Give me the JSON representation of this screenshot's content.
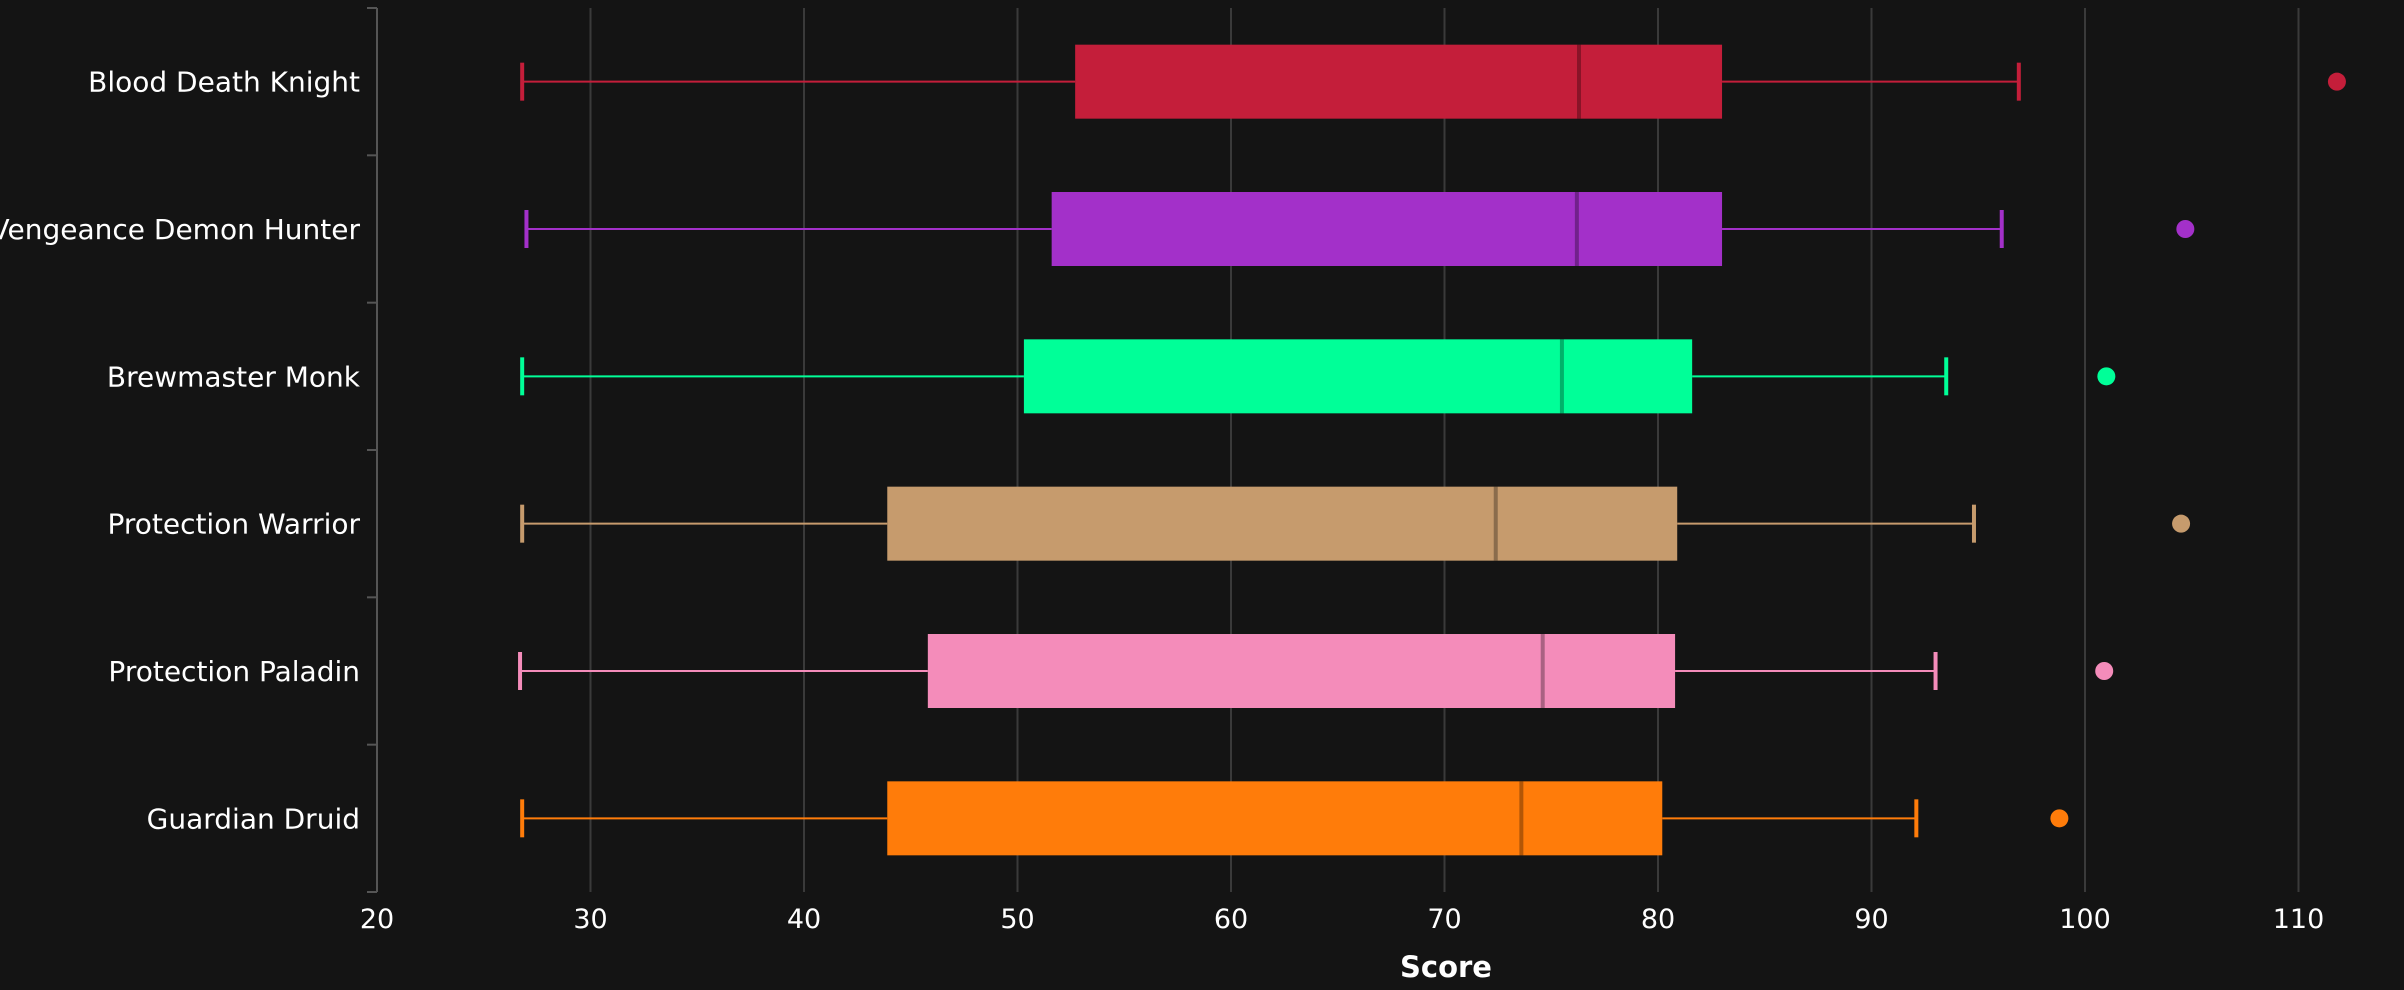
{
  "chart_data": {
    "type": "box",
    "orientation": "horizontal",
    "title": "",
    "xlabel": "Score",
    "ylabel": "",
    "xlim": [
      20,
      113
    ],
    "xticks": [
      20,
      30,
      40,
      50,
      60,
      70,
      80,
      90,
      100,
      110
    ],
    "grid": "vertical",
    "legend": "none",
    "background": "#141414",
    "series": [
      {
        "name": "Blood Death Knight",
        "color": "#C41E3A",
        "min": 26.8,
        "q1": 52.7,
        "median": 76.3,
        "q3": 83.0,
        "max": 96.9,
        "outliers": [
          111.8
        ]
      },
      {
        "name": "Vengeance Demon Hunter",
        "color": "#A330C9",
        "min": 27.0,
        "q1": 51.6,
        "median": 76.2,
        "q3": 83.0,
        "max": 96.1,
        "outliers": [
          104.7
        ]
      },
      {
        "name": "Brewmaster Monk",
        "color": "#00FF98",
        "min": 26.8,
        "q1": 50.3,
        "median": 75.5,
        "q3": 81.6,
        "max": 93.5,
        "outliers": [
          101.0
        ]
      },
      {
        "name": "Protection Warrior",
        "color": "#C69B6D",
        "min": 26.8,
        "q1": 43.9,
        "median": 72.4,
        "q3": 80.9,
        "max": 94.8,
        "outliers": [
          104.5
        ]
      },
      {
        "name": "Protection Paladin",
        "color": "#F48CBA",
        "min": 26.7,
        "q1": 45.8,
        "median": 74.6,
        "q3": 80.8,
        "max": 93.0,
        "outliers": [
          100.9
        ]
      },
      {
        "name": "Guardian Druid",
        "color": "#FF7C0A",
        "min": 26.8,
        "q1": 43.9,
        "median": 73.6,
        "q3": 80.2,
        "max": 92.1,
        "outliers": [
          98.8
        ]
      }
    ]
  }
}
